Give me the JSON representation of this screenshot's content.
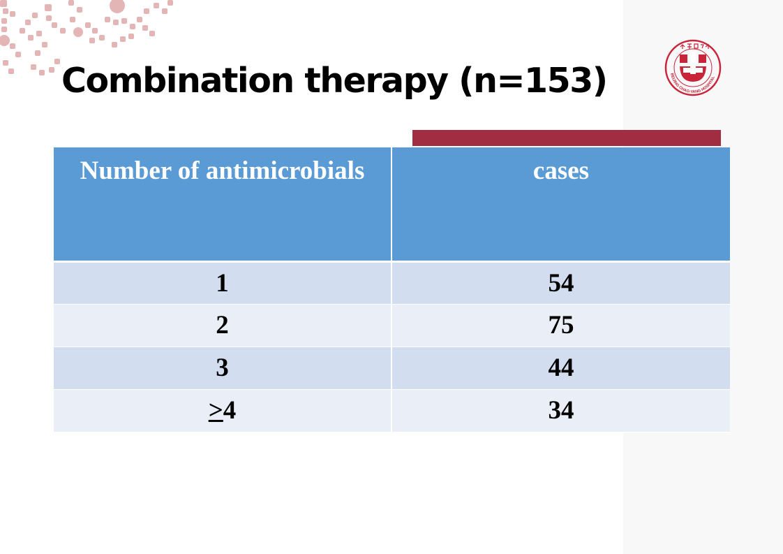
{
  "slide": {
    "title": "Combination therapy (n=153)"
  },
  "logo": {
    "name": "hospital-logo-icon",
    "text": "北京朝阳医院 BEIJING CHAO-YANG HOSPITAL",
    "color": "#c8243a"
  },
  "colors": {
    "accent_bar": "#a12d43",
    "header_bg": "#5b9bd5",
    "row_dark": "#d2ddef",
    "row_light": "#eaeff7",
    "decoration": "#e4b5b5"
  },
  "table": {
    "headers": [
      "Number of antimicrobials",
      "cases"
    ],
    "rows": [
      {
        "antimicrobials_symbol": "",
        "antimicrobials": "1",
        "cases": "54"
      },
      {
        "antimicrobials_symbol": "",
        "antimicrobials": "2",
        "cases": "75"
      },
      {
        "antimicrobials_symbol": "",
        "antimicrobials": "3",
        "cases": "44"
      },
      {
        "antimicrobials_symbol": ">",
        "antimicrobials": "4",
        "cases": "34"
      }
    ]
  }
}
